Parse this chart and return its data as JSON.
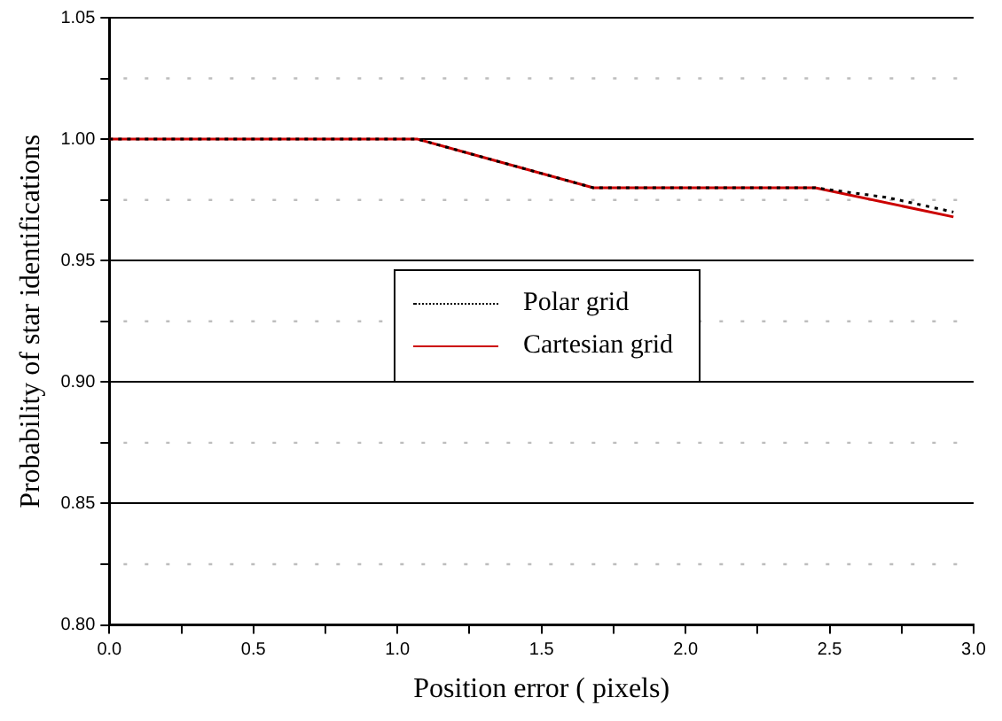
{
  "chart_data": {
    "type": "line",
    "xlabel": "Position error ( pixels)",
    "ylabel": "Probability of star identifications",
    "xlim": [
      0,
      3
    ],
    "xticks": [
      {
        "value": 0,
        "label": "0.0"
      },
      {
        "value": 0.25,
        "label": null
      },
      {
        "value": 0.5,
        "label": "0.5"
      },
      {
        "value": 0.75,
        "label": null
      },
      {
        "value": 1,
        "label": "1.0"
      },
      {
        "value": 1.25,
        "label": null
      },
      {
        "value": 1.5,
        "label": "1.5"
      },
      {
        "value": 1.75,
        "label": null
      },
      {
        "value": 2,
        "label": "2.0"
      },
      {
        "value": 2.25,
        "label": null
      },
      {
        "value": 2.5,
        "label": "2.5"
      },
      {
        "value": 2.75,
        "label": null
      },
      {
        "value": 3,
        "label": "3.0"
      }
    ],
    "ylim": [
      0.8,
      1.05
    ],
    "yticks": [
      {
        "value": 0.8,
        "label": "0.80"
      },
      {
        "value": 0.825,
        "label": null
      },
      {
        "value": 0.85,
        "label": "0.85"
      },
      {
        "value": 0.875,
        "label": null
      },
      {
        "value": 0.9,
        "label": "0.90"
      },
      {
        "value": 0.925,
        "label": null
      },
      {
        "value": 0.95,
        "label": "0.95"
      },
      {
        "value": 0.975,
        "label": null
      },
      {
        "value": 1,
        "label": "1.00"
      },
      {
        "value": 1.025,
        "label": null
      },
      {
        "value": 1.05,
        "label": "1.05"
      }
    ],
    "grid": "y",
    "legend": "center",
    "marker": "none",
    "series": [
      {
        "name": "Polar grid",
        "color": "#000000",
        "line_style": "dotted",
        "x": [
          0,
          1.07,
          1.68,
          2.45,
          2.7,
          2.93
        ],
        "values": [
          1,
          1,
          0.98,
          0.98,
          0.976,
          0.97
        ]
      },
      {
        "name": "Cartesian grid",
        "color": "#cc0000",
        "line_style": "solid",
        "x": [
          0,
          1.07,
          1.68,
          2.45,
          2.93
        ],
        "values": [
          1,
          1,
          0.98,
          0.98,
          0.968
        ]
      }
    ]
  }
}
